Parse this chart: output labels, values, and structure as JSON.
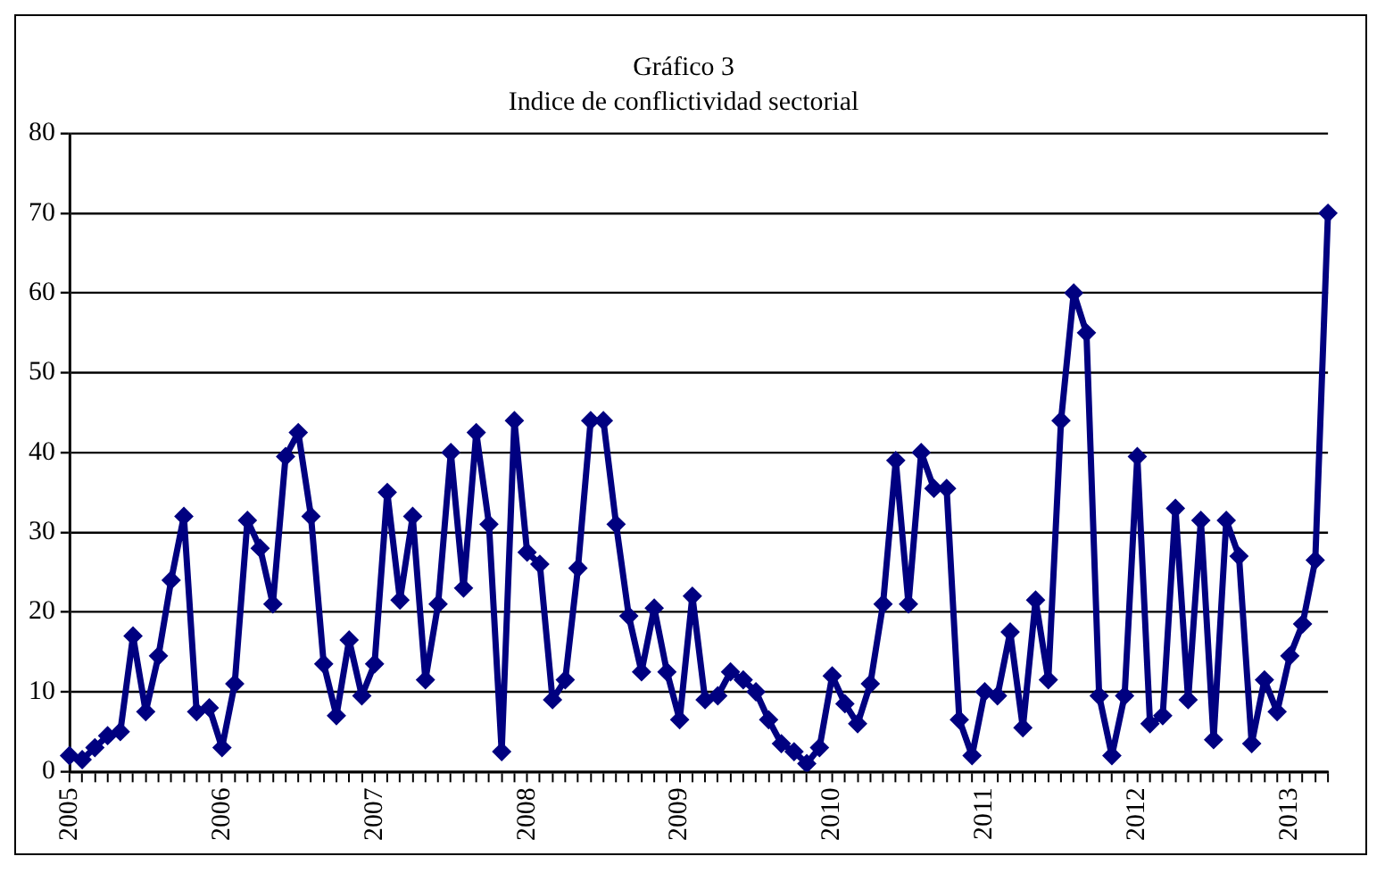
{
  "chart_data": {
    "type": "line",
    "title": "Gráfico 3",
    "subtitle": "Indice de conflictividad sectorial",
    "categories": [
      "2005",
      null,
      null,
      null,
      null,
      null,
      null,
      null,
      null,
      null,
      null,
      null,
      "2006",
      null,
      null,
      null,
      null,
      null,
      null,
      null,
      null,
      null,
      null,
      null,
      "2007",
      null,
      null,
      null,
      null,
      null,
      null,
      null,
      null,
      null,
      null,
      null,
      "2008",
      null,
      null,
      null,
      null,
      null,
      null,
      null,
      null,
      null,
      null,
      null,
      "2009",
      null,
      null,
      null,
      null,
      null,
      null,
      null,
      null,
      null,
      null,
      null,
      "2010",
      null,
      null,
      null,
      null,
      null,
      null,
      null,
      null,
      null,
      null,
      null,
      "2011",
      null,
      null,
      null,
      null,
      null,
      null,
      null,
      null,
      null,
      null,
      null,
      "2012",
      null,
      null,
      null,
      null,
      null,
      null,
      null,
      null,
      null,
      null,
      null,
      "2013",
      null,
      null,
      null
    ],
    "series": [
      {
        "color": "#000080",
        "values": [
          2,
          1.5,
          3,
          4.5,
          5,
          17,
          7.5,
          14.5,
          24,
          32,
          7.5,
          8,
          3,
          11,
          31.5,
          28,
          21,
          39.5,
          42.5,
          32,
          13.5,
          7,
          16.5,
          9.5,
          13.5,
          35,
          21.5,
          32,
          11.5,
          21,
          40,
          23,
          42.5,
          31,
          2.5,
          44,
          27.5,
          26,
          9,
          11.5,
          25.5,
          44,
          44,
          31,
          19.5,
          12.5,
          20.5,
          12.5,
          6.5,
          22,
          9,
          9.5,
          12.5,
          11.5,
          10,
          6.5,
          3.5,
          2.5,
          1,
          3,
          12,
          8.5,
          6,
          11,
          21,
          39,
          21,
          40,
          35.5,
          35.5,
          6.5,
          2,
          10,
          9.5,
          17.5,
          5.5,
          21.5,
          11.5,
          44,
          60,
          55,
          9.5,
          2,
          9.5,
          39.5,
          6,
          7,
          33,
          9,
          31.5,
          4,
          31.5,
          27,
          3.5,
          11.5,
          7.5,
          14.5,
          18.5,
          26.5,
          70
        ]
      }
    ],
    "ylim": [
      0,
      80
    ],
    "yticks": [
      0,
      10,
      20,
      30,
      40,
      50,
      60,
      70,
      80
    ],
    "grid": "y",
    "marker": "diamond",
    "line_style": "solid"
  }
}
